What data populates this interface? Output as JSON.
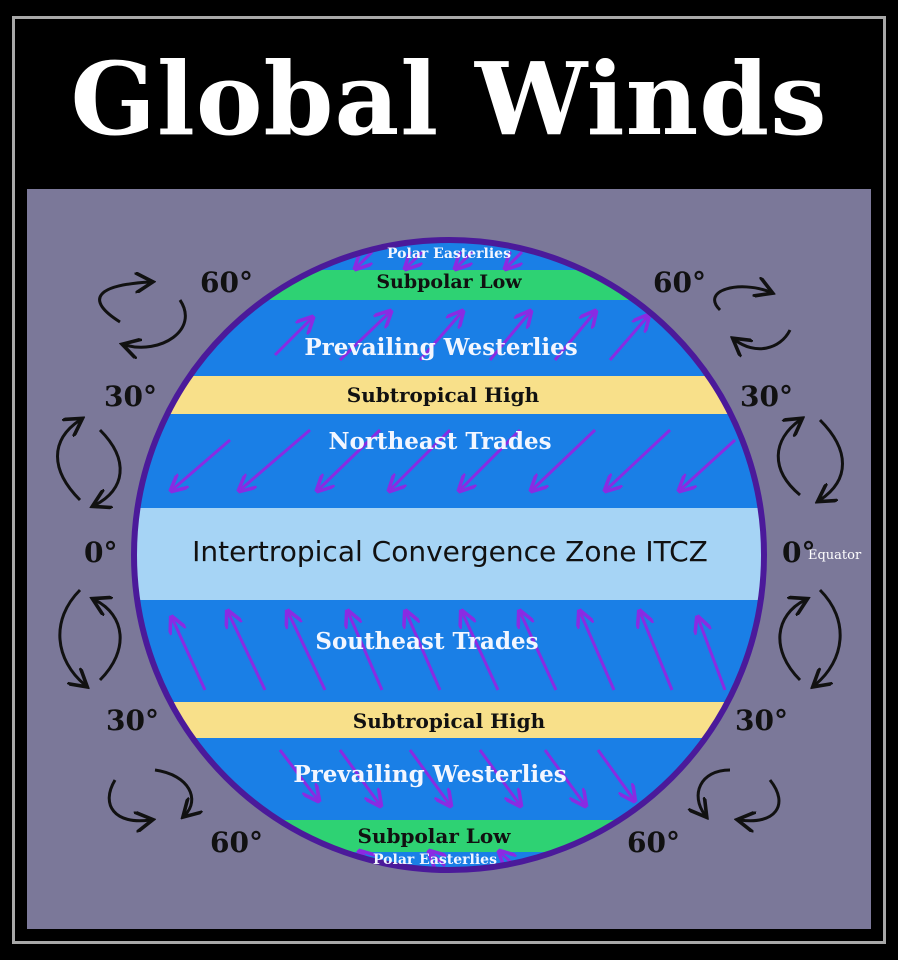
{
  "title": "Global Winds",
  "zones": {
    "polar_easterlies_n": "Polar Easterlies",
    "subpolar_low_n": "Subpolar Low",
    "prevailing_westerlies_n": "Prevailing Westerlies",
    "subtropical_high_n": "Subtropical High",
    "northeast_trades": "Northeast Trades",
    "itcz": "Intertropical Convergence Zone ITCZ",
    "southeast_trades": "Southeast Trades",
    "subtropical_high_s": "Subtropical High",
    "prevailing_westerlies_s": "Prevailing Westerlies",
    "subpolar_low_s": "Subpolar Low",
    "polar_easterlies_s": "Polar Easterlies"
  },
  "latitudes": {
    "n60_left": "60°",
    "n60_right": "60°",
    "n30_left": "30°",
    "n30_right": "30°",
    "eq_left": "0°",
    "eq_right": "0°",
    "s30_left": "30°",
    "s30_right": "30°",
    "s60_left": "60°",
    "s60_right": "60°",
    "equator_label": "Equator"
  },
  "colors": {
    "ocean_blue": "#1a7fe6",
    "subpolar_green": "#2ed273",
    "subtropical_yellow": "#f8e08a",
    "itcz_light_blue": "#a6d4f5",
    "wind_arrows": "#8a2be2",
    "globe_outline": "#4b1a9a",
    "background": "#7b7899"
  }
}
